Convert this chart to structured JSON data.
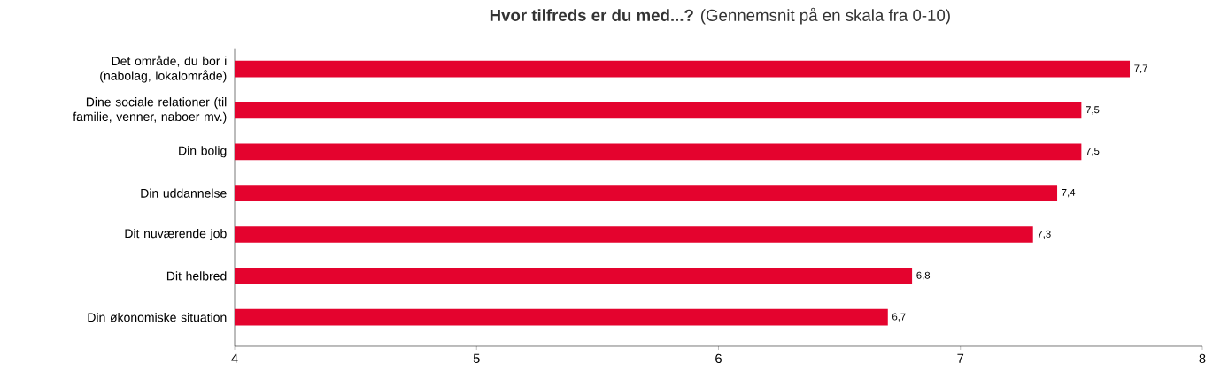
{
  "chart_data": {
    "type": "bar",
    "orientation": "horizontal",
    "title": "**Hvor tilfreds er du med...?** (Gennemsnit på en skala fra 0-10)",
    "categories": [
      "Det område, du bor i (nabolag, lokalområde)",
      "Dine sociale relationer (til familie, venner, naboer mv.)",
      "Din bolig",
      "Din uddannelse",
      "Dit nuværende job",
      "Dit helbred",
      "Din økonomiske situation"
    ],
    "values": [
      7.7,
      7.5,
      7.5,
      7.4,
      7.3,
      6.8,
      6.7
    ],
    "value_labels": [
      "7,7",
      "7,5",
      "7,5",
      "7,4",
      "7,3",
      "6,8",
      "6,7"
    ],
    "color": "#e4032e",
    "xlim": [
      4,
      8
    ],
    "xticks": [
      4,
      5,
      6,
      7,
      8
    ],
    "grid": false
  }
}
